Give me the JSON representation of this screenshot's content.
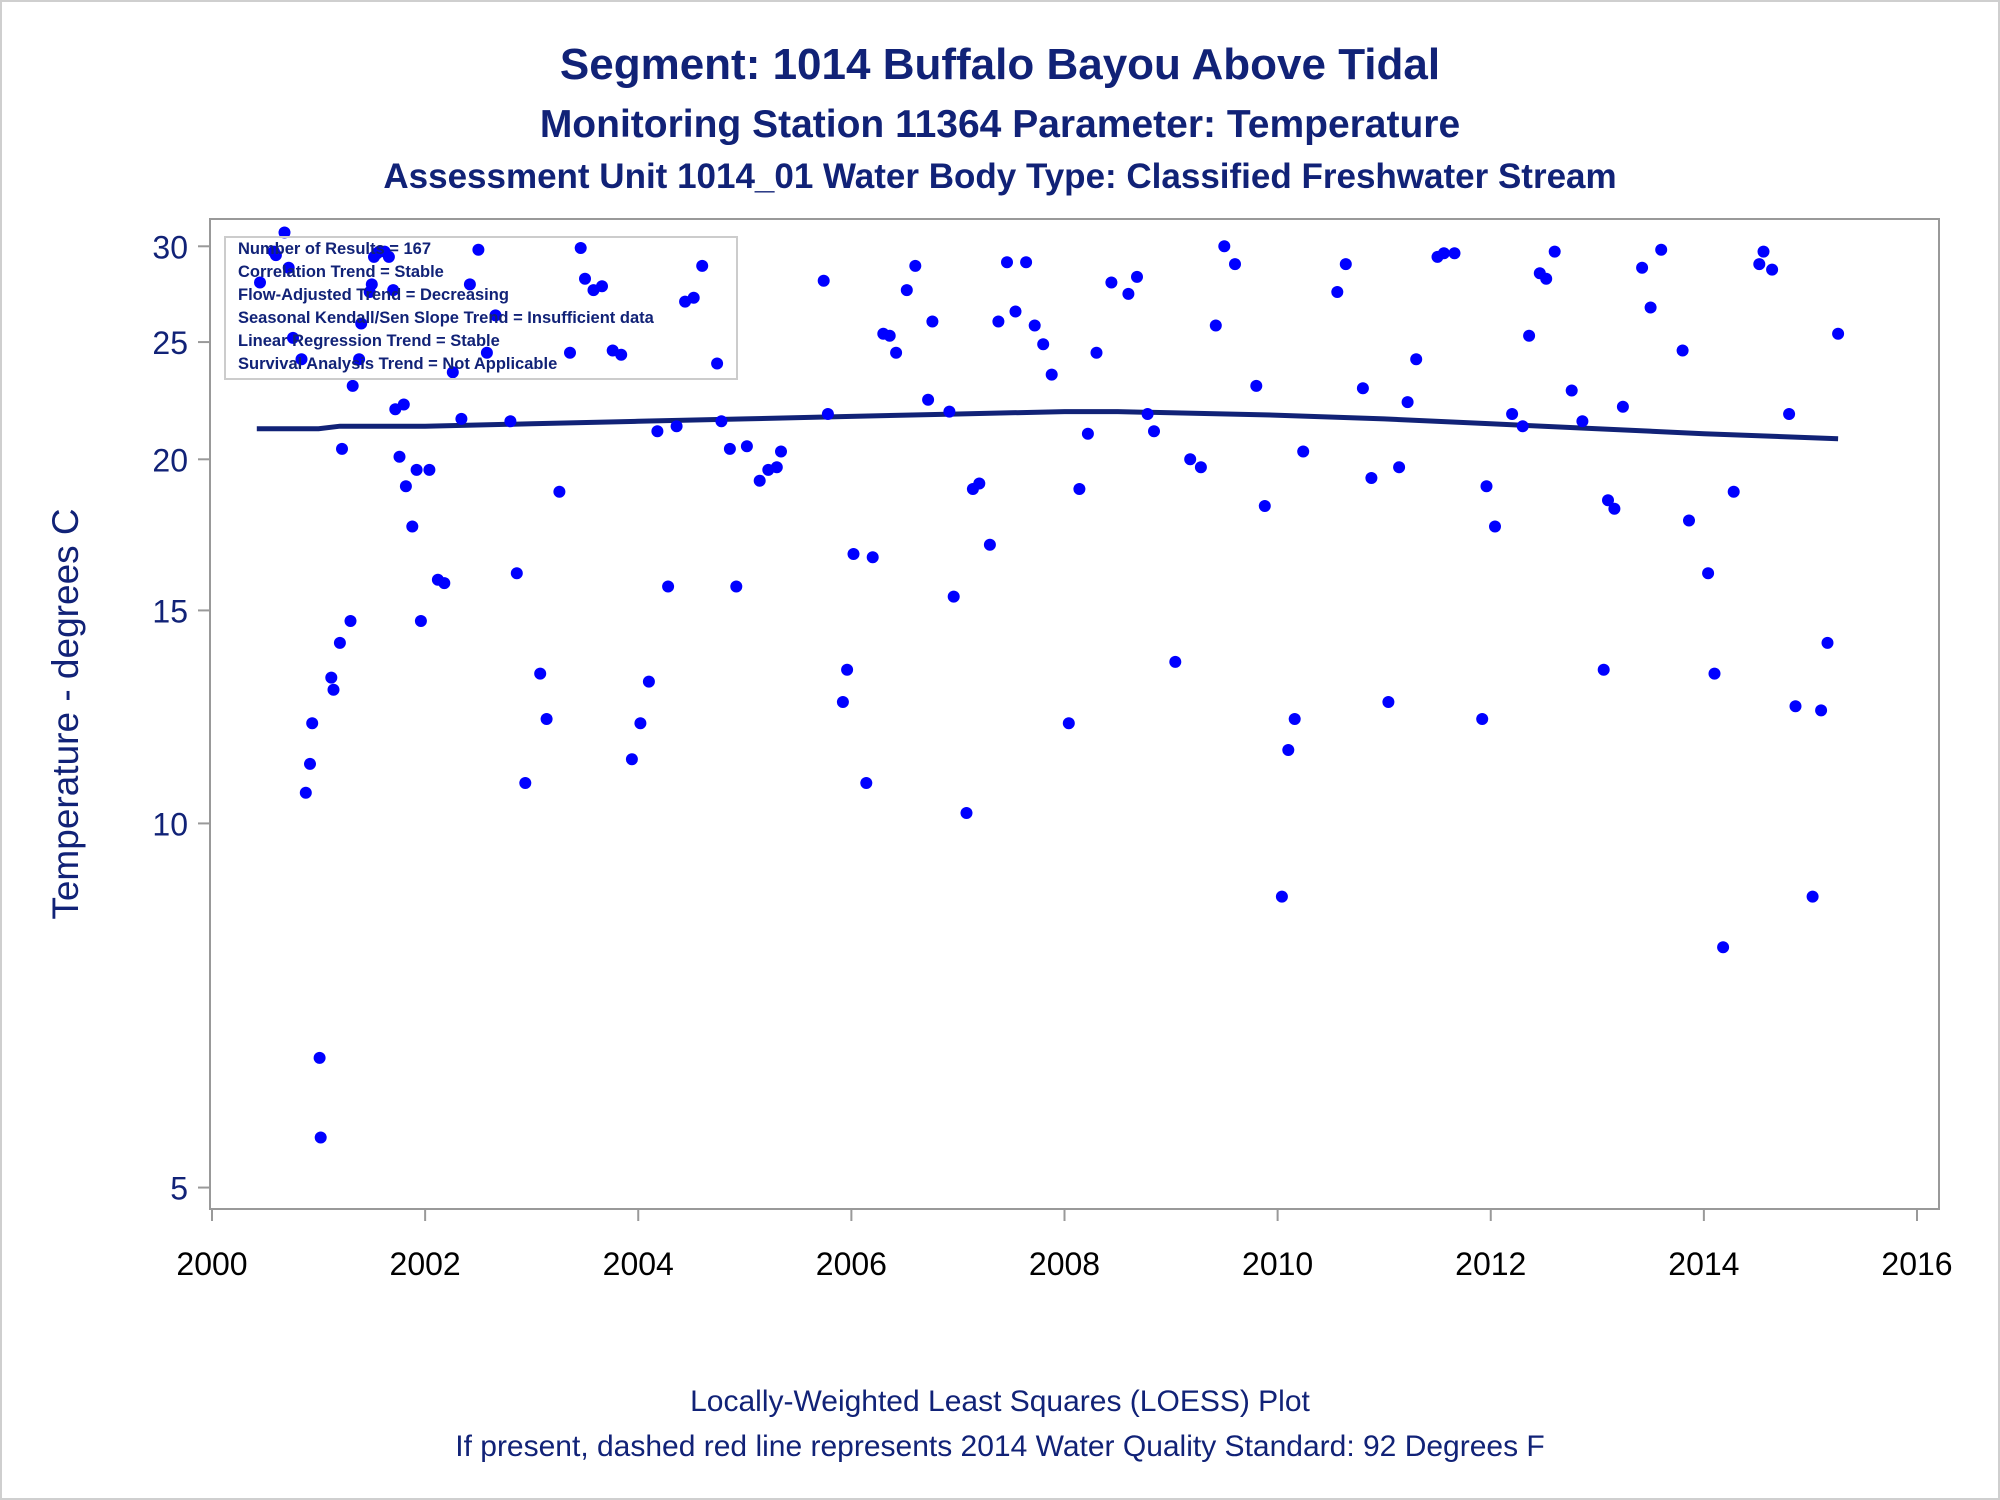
{
  "titles": {
    "line1": "Segment: 1014  Buffalo Bayou Above Tidal",
    "line2": "Monitoring Station 11364 Parameter: Temperature",
    "line3": "Assessment Unit 1014_01   Water Body Type: Classified Freshwater Stream"
  },
  "footer": {
    "line1": "Locally-Weighted Least Squares (LOESS) Plot",
    "line2": "If present, dashed red line represents 2014 Water Quality Standard: 92   Degrees F"
  },
  "stats_box": [
    "Number of Results = 167",
    "Correlation Trend = Stable",
    "Flow-Adjusted Trend = Decreasing",
    "Seasonal Kendall/Sen Slope Trend = Insufficient data",
    "Linear Regression Trend = Stable",
    "Survival Analysis Trend = Not Applicable"
  ],
  "colors": {
    "text": "#112277",
    "points": "#0000ff",
    "loess": "#112277",
    "frame": "#999999"
  },
  "chart_data": {
    "type": "scatter",
    "ylabel": "Temperature - degrees C",
    "xlabel": "",
    "y_scale": "log",
    "xlim": [
      2000,
      2016
    ],
    "ylim": [
      4.8,
      31.6
    ],
    "x_ticks": [
      2000,
      2002,
      2004,
      2006,
      2008,
      2010,
      2012,
      2014,
      2016
    ],
    "y_ticks": [
      5,
      10,
      15,
      20,
      25,
      30
    ],
    "points": [
      [
        2000.45,
        28.0
      ],
      [
        2000.58,
        29.7
      ],
      [
        2000.6,
        29.5
      ],
      [
        2000.68,
        30.8
      ],
      [
        2000.72,
        28.8
      ],
      [
        2000.76,
        25.2
      ],
      [
        2000.84,
        24.2
      ],
      [
        2000.88,
        10.6
      ],
      [
        2000.92,
        11.2
      ],
      [
        2000.94,
        12.1
      ],
      [
        2001.01,
        6.4
      ],
      [
        2001.02,
        5.5
      ],
      [
        2001.12,
        13.2
      ],
      [
        2001.14,
        12.9
      ],
      [
        2001.2,
        14.1
      ],
      [
        2001.22,
        20.4
      ],
      [
        2001.3,
        14.7
      ],
      [
        2001.32,
        23.0
      ],
      [
        2001.38,
        24.2
      ],
      [
        2001.4,
        25.9
      ],
      [
        2001.48,
        27.5
      ],
      [
        2001.5,
        27.9
      ],
      [
        2001.52,
        29.4
      ],
      [
        2001.55,
        29.6
      ],
      [
        2001.57,
        29.7
      ],
      [
        2001.62,
        29.7
      ],
      [
        2001.66,
        29.4
      ],
      [
        2001.7,
        27.6
      ],
      [
        2001.72,
        22.0
      ],
      [
        2001.76,
        20.1
      ],
      [
        2001.8,
        22.2
      ],
      [
        2001.82,
        19.0
      ],
      [
        2001.88,
        17.6
      ],
      [
        2001.92,
        19.6
      ],
      [
        2001.96,
        14.7
      ],
      [
        2002.04,
        19.6
      ],
      [
        2002.12,
        15.9
      ],
      [
        2002.18,
        15.8
      ],
      [
        2002.26,
        23.6
      ],
      [
        2002.34,
        21.6
      ],
      [
        2002.42,
        27.9
      ],
      [
        2002.5,
        29.8
      ],
      [
        2002.58,
        24.5
      ],
      [
        2002.66,
        26.3
      ],
      [
        2002.8,
        21.5
      ],
      [
        2002.86,
        16.1
      ],
      [
        2002.94,
        10.8
      ],
      [
        2003.08,
        13.3
      ],
      [
        2003.14,
        12.2
      ],
      [
        2003.26,
        18.8
      ],
      [
        2003.36,
        24.5
      ],
      [
        2003.46,
        29.9
      ],
      [
        2003.5,
        28.2
      ],
      [
        2003.58,
        27.6
      ],
      [
        2003.66,
        27.8
      ],
      [
        2003.76,
        24.6
      ],
      [
        2003.84,
        24.4
      ],
      [
        2003.94,
        11.3
      ],
      [
        2004.02,
        12.1
      ],
      [
        2004.1,
        13.1
      ],
      [
        2004.18,
        21.1
      ],
      [
        2004.28,
        15.7
      ],
      [
        2004.36,
        21.3
      ],
      [
        2004.44,
        27.0
      ],
      [
        2004.52,
        27.2
      ],
      [
        2004.6,
        28.9
      ],
      [
        2004.74,
        24.0
      ],
      [
        2004.78,
        21.5
      ],
      [
        2004.86,
        20.4
      ],
      [
        2004.92,
        15.7
      ],
      [
        2005.02,
        20.5
      ],
      [
        2005.14,
        19.2
      ],
      [
        2005.22,
        19.6
      ],
      [
        2005.3,
        19.7
      ],
      [
        2005.34,
        20.3
      ],
      [
        2005.74,
        28.1
      ],
      [
        2005.78,
        21.8
      ],
      [
        2005.92,
        12.6
      ],
      [
        2005.96,
        13.4
      ],
      [
        2006.02,
        16.7
      ],
      [
        2006.14,
        10.8
      ],
      [
        2006.2,
        16.6
      ],
      [
        2006.3,
        25.4
      ],
      [
        2006.36,
        25.3
      ],
      [
        2006.42,
        24.5
      ],
      [
        2006.52,
        27.6
      ],
      [
        2006.6,
        28.9
      ],
      [
        2006.72,
        22.4
      ],
      [
        2006.76,
        26.0
      ],
      [
        2006.92,
        21.9
      ],
      [
        2006.96,
        15.4
      ],
      [
        2007.08,
        10.2
      ],
      [
        2007.14,
        18.9
      ],
      [
        2007.2,
        19.1
      ],
      [
        2007.3,
        17.0
      ],
      [
        2007.38,
        26.0
      ],
      [
        2007.46,
        29.1
      ],
      [
        2007.54,
        26.5
      ],
      [
        2007.64,
        29.1
      ],
      [
        2007.72,
        25.8
      ],
      [
        2007.8,
        24.9
      ],
      [
        2007.88,
        23.5
      ],
      [
        2008.04,
        12.1
      ],
      [
        2008.14,
        18.9
      ],
      [
        2008.22,
        21.0
      ],
      [
        2008.3,
        24.5
      ],
      [
        2008.44,
        28.0
      ],
      [
        2008.6,
        27.4
      ],
      [
        2008.68,
        28.3
      ],
      [
        2008.78,
        21.8
      ],
      [
        2008.84,
        21.1
      ],
      [
        2009.04,
        13.6
      ],
      [
        2009.18,
        20.0
      ],
      [
        2009.28,
        19.7
      ],
      [
        2009.42,
        25.8
      ],
      [
        2009.5,
        30.0
      ],
      [
        2009.6,
        29.0
      ],
      [
        2009.8,
        23.0
      ],
      [
        2009.88,
        18.3
      ],
      [
        2010.04,
        8.7
      ],
      [
        2010.1,
        11.5
      ],
      [
        2010.16,
        12.2
      ],
      [
        2010.24,
        20.3
      ],
      [
        2010.56,
        27.5
      ],
      [
        2010.64,
        29.0
      ],
      [
        2010.8,
        22.9
      ],
      [
        2010.88,
        19.3
      ],
      [
        2011.04,
        12.6
      ],
      [
        2011.14,
        19.7
      ],
      [
        2011.22,
        22.3
      ],
      [
        2011.3,
        24.2
      ],
      [
        2011.5,
        29.4
      ],
      [
        2011.56,
        29.6
      ],
      [
        2011.66,
        29.6
      ],
      [
        2011.92,
        12.2
      ],
      [
        2011.96,
        19.0
      ],
      [
        2012.04,
        17.6
      ],
      [
        2012.2,
        21.8
      ],
      [
        2012.3,
        21.3
      ],
      [
        2012.36,
        25.3
      ],
      [
        2012.46,
        28.5
      ],
      [
        2012.52,
        28.2
      ],
      [
        2012.6,
        29.7
      ],
      [
        2012.76,
        22.8
      ],
      [
        2012.86,
        21.5
      ],
      [
        2013.06,
        13.4
      ],
      [
        2013.1,
        18.5
      ],
      [
        2013.16,
        18.2
      ],
      [
        2013.24,
        22.1
      ],
      [
        2013.42,
        28.8
      ],
      [
        2013.5,
        26.7
      ],
      [
        2013.6,
        29.8
      ],
      [
        2013.8,
        24.6
      ],
      [
        2013.86,
        17.8
      ],
      [
        2014.04,
        16.1
      ],
      [
        2014.1,
        13.3
      ],
      [
        2014.18,
        7.9
      ],
      [
        2014.28,
        18.8
      ],
      [
        2014.52,
        29.0
      ],
      [
        2014.56,
        29.7
      ],
      [
        2014.64,
        28.7
      ],
      [
        2014.8,
        21.8
      ],
      [
        2014.86,
        12.5
      ],
      [
        2015.02,
        8.7
      ],
      [
        2015.1,
        12.4
      ],
      [
        2015.16,
        14.1
      ],
      [
        2015.26,
        25.4
      ]
    ],
    "loess": [
      [
        2000.42,
        21.2
      ],
      [
        2001.0,
        21.2
      ],
      [
        2001.2,
        21.3
      ],
      [
        2002.0,
        21.3
      ],
      [
        2003.0,
        21.4
      ],
      [
        2004.0,
        21.5
      ],
      [
        2005.0,
        21.6
      ],
      [
        2006.0,
        21.7
      ],
      [
        2007.0,
        21.8
      ],
      [
        2007.5,
        21.85
      ],
      [
        2008.0,
        21.9
      ],
      [
        2008.5,
        21.9
      ],
      [
        2009.0,
        21.85
      ],
      [
        2010.0,
        21.75
      ],
      [
        2011.0,
        21.6
      ],
      [
        2012.0,
        21.4
      ],
      [
        2013.0,
        21.2
      ],
      [
        2014.0,
        21.0
      ],
      [
        2015.26,
        20.8
      ]
    ]
  }
}
